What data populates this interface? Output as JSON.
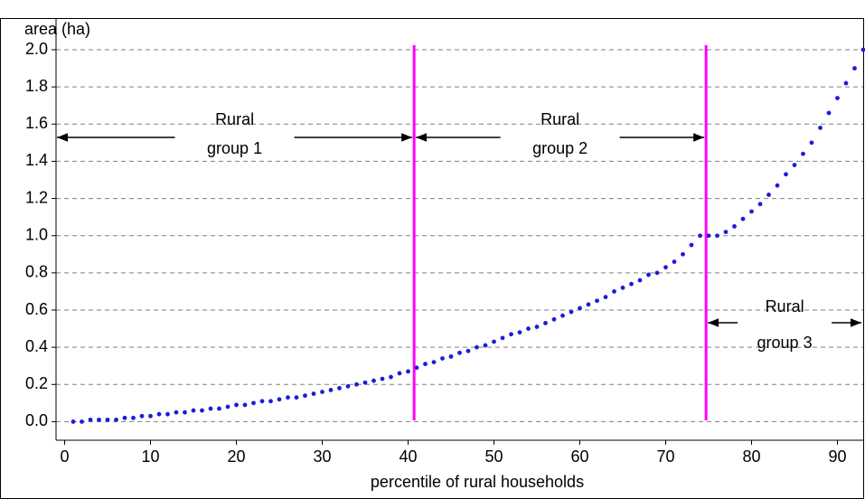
{
  "chart_data": {
    "type": "scatter",
    "y_label": "area (ha)",
    "x_label": "percentile of rural households",
    "color": "#1c1cd8",
    "x": [
      1,
      2,
      3,
      4,
      5,
      6,
      7,
      8,
      9,
      10,
      11,
      12,
      13,
      14,
      15,
      16,
      17,
      18,
      19,
      20,
      21,
      22,
      23,
      24,
      25,
      26,
      27,
      28,
      29,
      30,
      31,
      32,
      33,
      34,
      35,
      36,
      37,
      38,
      39,
      40,
      41,
      42,
      43,
      44,
      45,
      46,
      47,
      48,
      49,
      50,
      51,
      52,
      53,
      54,
      55,
      56,
      57,
      58,
      59,
      60,
      61,
      62,
      63,
      64,
      65,
      66,
      67,
      68,
      69,
      70,
      71,
      72,
      73,
      74,
      75,
      76,
      77,
      78,
      79,
      80,
      81,
      82,
      83,
      84,
      85,
      86,
      87,
      88,
      89,
      90,
      91,
      92,
      93
    ],
    "values": [
      0.0,
      0.0,
      0.01,
      0.01,
      0.01,
      0.01,
      0.02,
      0.02,
      0.03,
      0.03,
      0.04,
      0.04,
      0.05,
      0.05,
      0.06,
      0.06,
      0.07,
      0.07,
      0.08,
      0.09,
      0.09,
      0.1,
      0.11,
      0.11,
      0.12,
      0.13,
      0.13,
      0.14,
      0.15,
      0.16,
      0.17,
      0.18,
      0.19,
      0.2,
      0.21,
      0.22,
      0.23,
      0.24,
      0.26,
      0.27,
      0.29,
      0.31,
      0.32,
      0.34,
      0.35,
      0.37,
      0.38,
      0.4,
      0.41,
      0.43,
      0.45,
      0.47,
      0.48,
      0.5,
      0.51,
      0.53,
      0.55,
      0.57,
      0.59,
      0.61,
      0.63,
      0.65,
      0.67,
      0.7,
      0.72,
      0.74,
      0.76,
      0.79,
      0.8,
      0.83,
      0.86,
      0.9,
      0.95,
      1.0,
      1.0,
      1.0,
      1.02,
      1.05,
      1.09,
      1.13,
      1.17,
      1.22,
      1.27,
      1.33,
      1.38,
      1.44,
      1.5,
      1.58,
      1.66,
      1.74,
      1.82,
      1.9,
      2.0
    ],
    "xlim": [
      -1,
      93
    ],
    "ylim": [
      -0.1,
      2.0
    ],
    "xticks": [
      0,
      10,
      20,
      30,
      40,
      50,
      60,
      70,
      80,
      90
    ],
    "yticks": [
      {
        "value": 0,
        "label": "0.0"
      },
      0.2,
      0.4,
      0.6,
      0.8,
      {
        "value": 1,
        "label": "1.0"
      },
      1.2,
      1.4,
      1.6,
      1.8,
      {
        "value": 2,
        "label": "2.0"
      }
    ],
    "grid": true,
    "vlines": [
      40.7,
      74.7
    ],
    "vline_color": "#ff00ff",
    "groups": [
      {
        "lines": [
          "Rural",
          "group 1"
        ]
      },
      {
        "lines": [
          "Rural",
          "group 2"
        ]
      },
      {
        "lines": [
          "Rural",
          "group 3"
        ]
      }
    ]
  }
}
